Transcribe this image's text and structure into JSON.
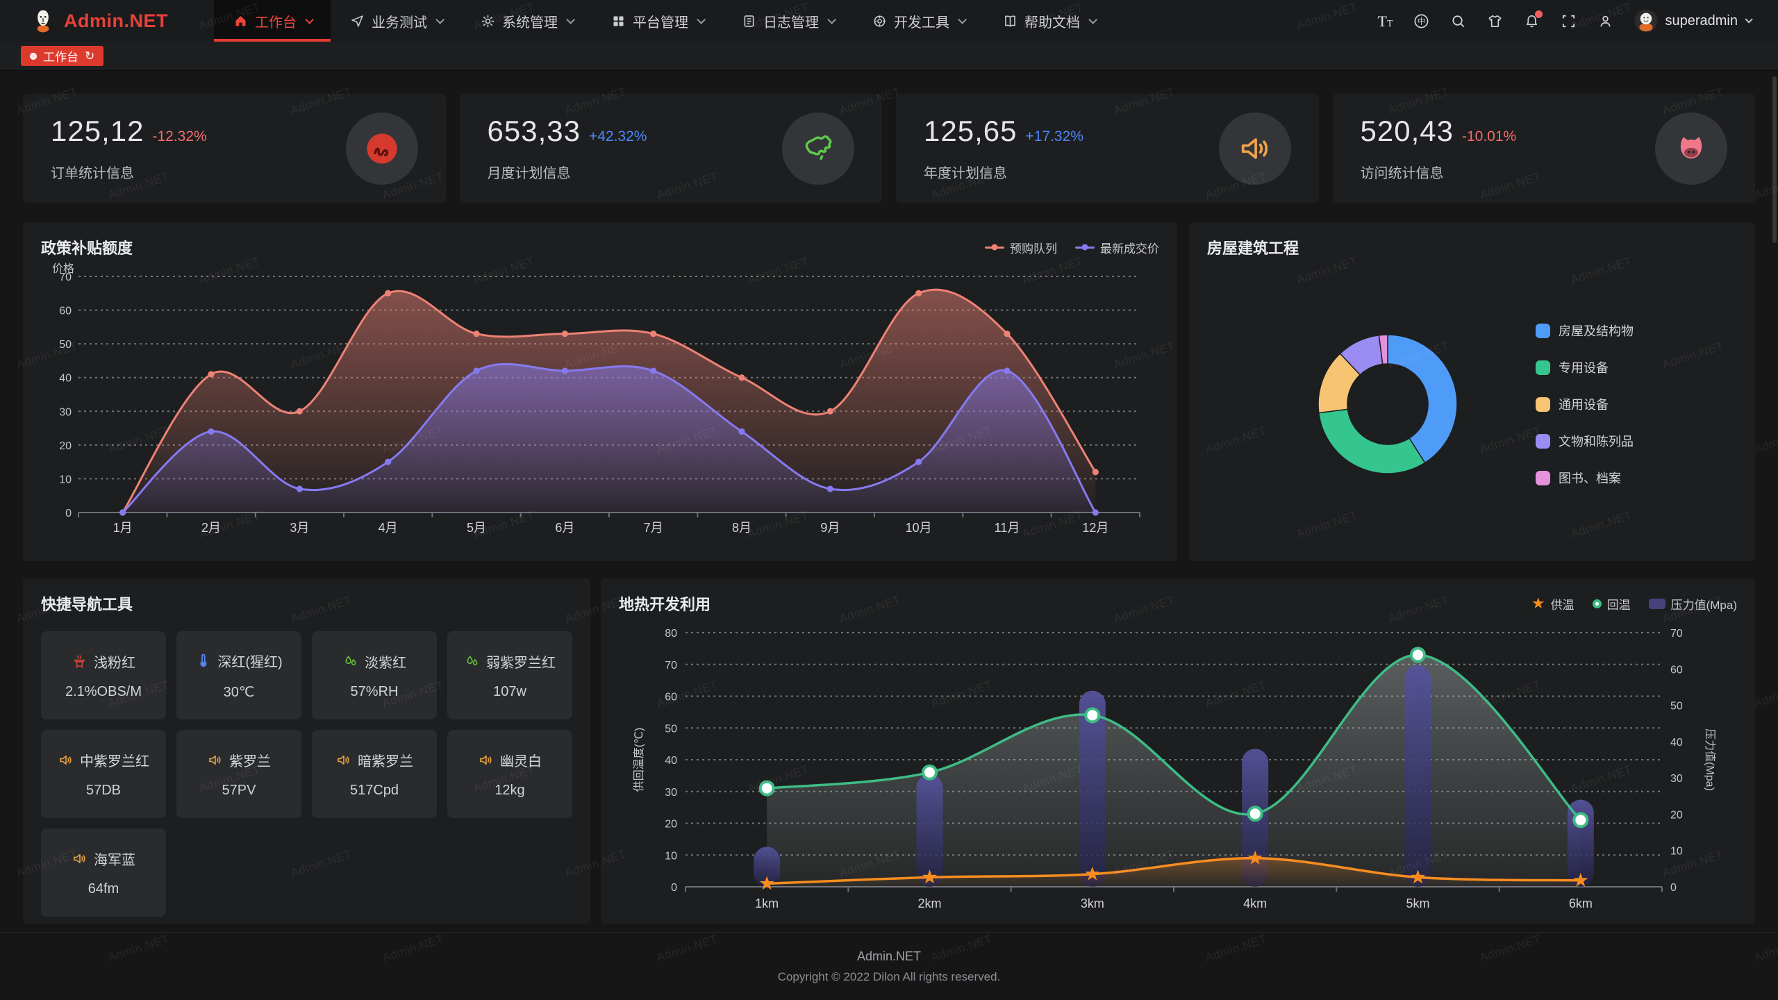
{
  "brand": {
    "name": "Admin.NET"
  },
  "navbar": {
    "menu": [
      {
        "label": "工作台",
        "icon": "home-icon",
        "active": true
      },
      {
        "label": "业务测试",
        "icon": "navigation-icon",
        "active": false
      },
      {
        "label": "系统管理",
        "icon": "gear-icon",
        "active": false
      },
      {
        "label": "平台管理",
        "icon": "grid-icon",
        "active": false
      },
      {
        "label": "日志管理",
        "icon": "journal-icon",
        "active": false
      },
      {
        "label": "开发工具",
        "icon": "tools-icon",
        "active": false
      },
      {
        "label": "帮助文档",
        "icon": "docs-icon",
        "active": false
      }
    ],
    "action_icons": [
      "font-size-icon",
      "language-icon",
      "search-icon",
      "theme-icon",
      "notification-icon",
      "fullscreen-icon",
      "profile-icon"
    ],
    "notification_badge": true,
    "username": "superadmin"
  },
  "tabbar": {
    "active_tab": "工作台"
  },
  "stats": [
    {
      "value": "125,12",
      "delta": "-12.32%",
      "trend": "down",
      "label": "订单统计信息",
      "icon": "meetup-icon",
      "icon_color": "#d63a2f"
    },
    {
      "value": "653,33",
      "delta": "+42.32%",
      "trend": "up",
      "label": "月度计划信息",
      "icon": "china-map-icon",
      "icon_color": "#5fc94e"
    },
    {
      "value": "125,65",
      "delta": "+17.32%",
      "trend": "up",
      "label": "年度计划信息",
      "icon": "speaker-icon",
      "icon_color": "#efa14d"
    },
    {
      "value": "520,43",
      "delta": "-10.01%",
      "trend": "down",
      "label": "访问统计信息",
      "icon": "cat-icon",
      "icon_color": "#f0788a"
    }
  ],
  "chart_data": [
    {
      "type": "line",
      "title": "政策补贴额度",
      "ylabel": "价格",
      "ylim": [
        0,
        70
      ],
      "grid": "dashed",
      "legend_position": "top-right",
      "categories": [
        "1月",
        "2月",
        "3月",
        "4月",
        "5月",
        "6月",
        "7月",
        "8月",
        "9月",
        "10月",
        "11月",
        "12月"
      ],
      "series": [
        {
          "name": "预购队列",
          "color": "#ed8275",
          "values": [
            0,
            41,
            30,
            65,
            53,
            53,
            53,
            40,
            30,
            65,
            53,
            12
          ]
        },
        {
          "name": "最新成交价",
          "color": "#867af0",
          "values": [
            0,
            24,
            7,
            15,
            42,
            42,
            42,
            24,
            7,
            15,
            42,
            0
          ]
        }
      ]
    },
    {
      "type": "pie",
      "title": "房屋建筑工程",
      "legend_position": "right",
      "slices": [
        {
          "label": "房屋及结构物",
          "value": 41,
          "color": "#4f9cf8"
        },
        {
          "label": "专用设备",
          "value": 32,
          "color": "#35c58f"
        },
        {
          "label": "通用设备",
          "value": 15,
          "color": "#f7c473"
        },
        {
          "label": "文物和陈列品",
          "value": 10,
          "color": "#9b8cf3"
        },
        {
          "label": "图书、档案",
          "value": 2,
          "color": "#e591dd"
        }
      ]
    },
    {
      "type": "mixed",
      "title": "地热开发利用",
      "categories": [
        "1km",
        "2km",
        "3km",
        "4km",
        "5km",
        "6km"
      ],
      "ylabel_left": "供回温度(℃)",
      "ylabel_right": "压力值(Mpa)",
      "ylim_left": [
        0,
        80
      ],
      "ylim_right": [
        0,
        70
      ],
      "grid": "dashed",
      "legend_position": "top-right",
      "series": [
        {
          "name": "供温",
          "type": "line",
          "symbol": "star",
          "color": "#f98d20",
          "axis": "left",
          "values": [
            1,
            3,
            4,
            9,
            3,
            2
          ]
        },
        {
          "name": "回温",
          "type": "line",
          "symbol": "circle",
          "color": "#3dbd85",
          "axis": "left",
          "values": [
            31,
            36,
            54,
            23,
            73,
            21
          ]
        },
        {
          "name": "压力值(Mpa)",
          "type": "bar",
          "color": "#45437a",
          "axis": "right",
          "values": [
            11,
            31,
            54,
            38,
            61,
            24
          ]
        }
      ]
    }
  ],
  "tools": {
    "title": "快捷导航工具",
    "items": [
      {
        "icon": "brazier-icon",
        "icon_color": "#e0453a",
        "name": "浅粉红",
        "value": "2.1%OBS/M"
      },
      {
        "icon": "thermometer-icon",
        "icon_color": "#5b8ff9",
        "name": "深红(猩红)",
        "value": "30℃"
      },
      {
        "icon": "humidity-icon",
        "icon_color": "#67c23a",
        "name": "淡紫红",
        "value": "57%RH"
      },
      {
        "icon": "humidity-icon",
        "icon_color": "#67c23a",
        "name": "弱紫罗兰红",
        "value": "107w"
      },
      {
        "icon": "speaker-icon",
        "icon_color": "#e6a23c",
        "name": "中紫罗兰红",
        "value": "57DB"
      },
      {
        "icon": "speaker-icon",
        "icon_color": "#e6a23c",
        "name": "紫罗兰",
        "value": "57PV"
      },
      {
        "icon": "speaker-icon",
        "icon_color": "#e6a23c",
        "name": "暗紫罗兰",
        "value": "517Cpd"
      },
      {
        "icon": "speaker-icon",
        "icon_color": "#e6a23c",
        "name": "幽灵白",
        "value": "12kg"
      },
      {
        "icon": "speaker-icon",
        "icon_color": "#e6a23c",
        "name": "海军蓝",
        "value": "64fm"
      }
    ]
  },
  "footer": {
    "line1": "Admin.NET",
    "line2": "Copyright © 2022 Dilon All rights reserved."
  },
  "watermark": {
    "text": "Admin.NET"
  },
  "colors": {
    "accent": "#e8413a",
    "negative": "#f56c6c",
    "positive": "#4d88fa",
    "refresh_icon": "↻"
  }
}
